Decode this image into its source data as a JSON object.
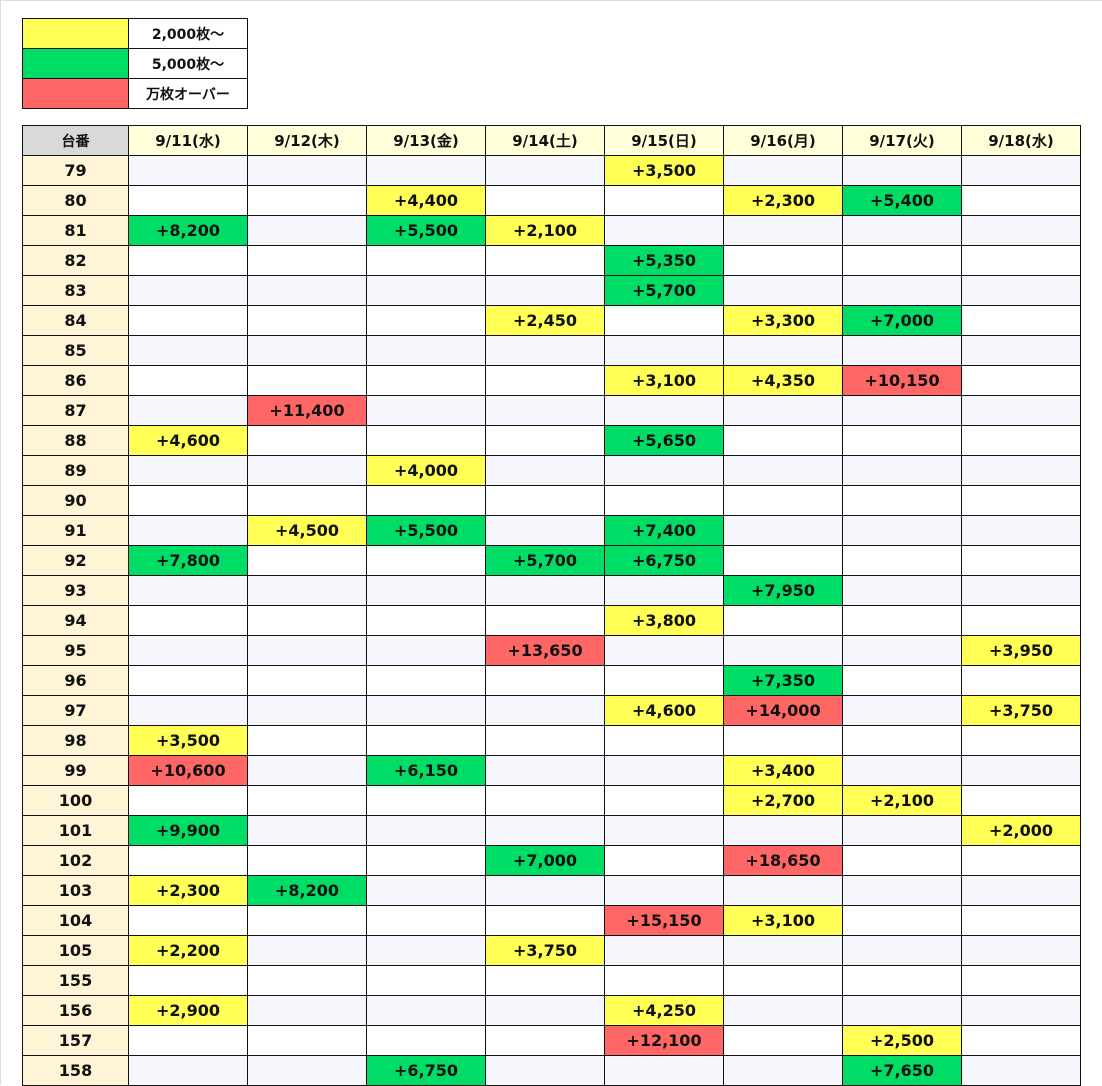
{
  "colors": {
    "yellow": "#ffff55",
    "green": "#00dd66",
    "red": "#ff6666"
  },
  "legend": [
    {
      "color": "yellow",
      "label": "2,000枚～"
    },
    {
      "color": "green",
      "label": "5,000枚～"
    },
    {
      "color": "red",
      "label": "万枚オーバー"
    }
  ],
  "table": {
    "corner": "台番",
    "days": [
      "9/11(水)",
      "9/12(木)",
      "9/13(金)",
      "9/14(土)",
      "9/15(日)",
      "9/16(月)",
      "9/17(火)",
      "9/18(水)"
    ],
    "rows": [
      {
        "id": "79",
        "cells": [
          "",
          "",
          "",
          "",
          "+3,500",
          "",
          "",
          ""
        ]
      },
      {
        "id": "80",
        "cells": [
          "",
          "",
          "+4,400",
          "",
          "",
          "+2,300",
          "+5,400",
          ""
        ]
      },
      {
        "id": "81",
        "cells": [
          "+8,200",
          "",
          "+5,500",
          "+2,100",
          "",
          "",
          "",
          ""
        ]
      },
      {
        "id": "82",
        "cells": [
          "",
          "",
          "",
          "",
          "+5,350",
          "",
          "",
          ""
        ]
      },
      {
        "id": "83",
        "cells": [
          "",
          "",
          "",
          "",
          "+5,700",
          "",
          "",
          ""
        ]
      },
      {
        "id": "84",
        "cells": [
          "",
          "",
          "",
          "+2,450",
          "",
          "+3,300",
          "+7,000",
          ""
        ]
      },
      {
        "id": "85",
        "cells": [
          "",
          "",
          "",
          "",
          "",
          "",
          "",
          ""
        ]
      },
      {
        "id": "86",
        "cells": [
          "",
          "",
          "",
          "",
          "+3,100",
          "+4,350",
          "+10,150",
          ""
        ]
      },
      {
        "id": "87",
        "cells": [
          "",
          "+11,400",
          "",
          "",
          "",
          "",
          "",
          ""
        ]
      },
      {
        "id": "88",
        "cells": [
          "+4,600",
          "",
          "",
          "",
          "+5,650",
          "",
          "",
          ""
        ]
      },
      {
        "id": "89",
        "cells": [
          "",
          "",
          "+4,000",
          "",
          "",
          "",
          "",
          ""
        ]
      },
      {
        "id": "90",
        "cells": [
          "",
          "",
          "",
          "",
          "",
          "",
          "",
          ""
        ]
      },
      {
        "id": "91",
        "cells": [
          "",
          "+4,500",
          "+5,500",
          "",
          "+7,400",
          "",
          "",
          ""
        ]
      },
      {
        "id": "92",
        "cells": [
          "+7,800",
          "",
          "",
          "+5,700",
          "+6,750",
          "",
          "",
          ""
        ]
      },
      {
        "id": "93",
        "cells": [
          "",
          "",
          "",
          "",
          "",
          "+7,950",
          "",
          ""
        ]
      },
      {
        "id": "94",
        "cells": [
          "",
          "",
          "",
          "",
          "+3,800",
          "",
          "",
          ""
        ]
      },
      {
        "id": "95",
        "cells": [
          "",
          "",
          "",
          "+13,650",
          "",
          "",
          "",
          "+3,950"
        ]
      },
      {
        "id": "96",
        "cells": [
          "",
          "",
          "",
          "",
          "",
          "+7,350",
          "",
          ""
        ]
      },
      {
        "id": "97",
        "cells": [
          "",
          "",
          "",
          "",
          "+4,600",
          "+14,000",
          "",
          "+3,750"
        ]
      },
      {
        "id": "98",
        "cells": [
          "+3,500",
          "",
          "",
          "",
          "",
          "",
          "",
          ""
        ]
      },
      {
        "id": "99",
        "cells": [
          "+10,600",
          "",
          "+6,150",
          "",
          "",
          "+3,400",
          "",
          ""
        ]
      },
      {
        "id": "100",
        "cells": [
          "",
          "",
          "",
          "",
          "",
          "+2,700",
          "+2,100",
          ""
        ]
      },
      {
        "id": "101",
        "cells": [
          "+9,900",
          "",
          "",
          "",
          "",
          "",
          "",
          "+2,000"
        ]
      },
      {
        "id": "102",
        "cells": [
          "",
          "",
          "",
          "+7,000",
          "",
          "+18,650",
          "",
          ""
        ]
      },
      {
        "id": "103",
        "cells": [
          "+2,300",
          "+8,200",
          "",
          "",
          "",
          "",
          "",
          ""
        ]
      },
      {
        "id": "104",
        "cells": [
          "",
          "",
          "",
          "",
          "+15,150",
          "+3,100",
          "",
          ""
        ]
      },
      {
        "id": "105",
        "cells": [
          "+2,200",
          "",
          "",
          "+3,750",
          "",
          "",
          "",
          ""
        ]
      },
      {
        "id": "155",
        "cells": [
          "",
          "",
          "",
          "",
          "",
          "",
          "",
          ""
        ]
      },
      {
        "id": "156",
        "cells": [
          "+2,900",
          "",
          "",
          "",
          "+4,250",
          "",
          "",
          ""
        ]
      },
      {
        "id": "157",
        "cells": [
          "",
          "",
          "",
          "",
          "+12,100",
          "",
          "+2,500",
          ""
        ]
      },
      {
        "id": "158",
        "cells": [
          "",
          "",
          "+6,750",
          "",
          "",
          "",
          "+7,650",
          ""
        ]
      }
    ]
  }
}
